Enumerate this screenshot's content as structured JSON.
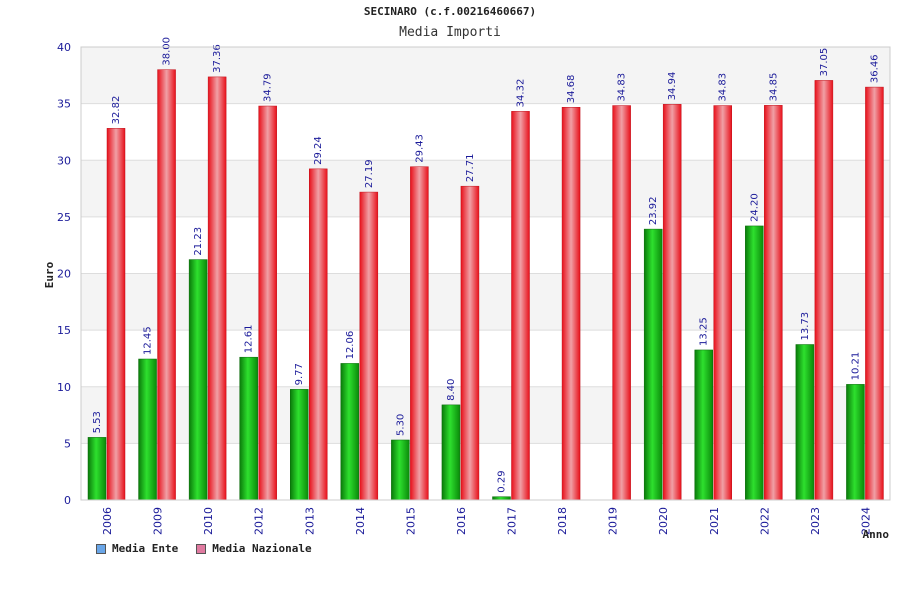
{
  "colors": {
    "ente_bar": "#14b814",
    "nazionale_bar": "#f0202a",
    "ente_legend": "#6aa6e8",
    "nazionale_legend": "#e07aa0",
    "tick_text": "#1a1a99"
  },
  "chart_data": {
    "type": "bar",
    "title": "SECINARO (c.f.00216460667)",
    "subtitle": "Media Importi",
    "xlabel": "Anno",
    "ylabel": "Euro",
    "ylim": [
      0,
      40
    ],
    "yticks": [
      0,
      5,
      10,
      15,
      20,
      25,
      30,
      35,
      40
    ],
    "grid": true,
    "legend_position": "bottom-left",
    "categories": [
      "2006",
      "2009",
      "2010",
      "2012",
      "2013",
      "2014",
      "2015",
      "2016",
      "2017",
      "2018",
      "2019",
      "2020",
      "2021",
      "2022",
      "2023",
      "2024"
    ],
    "series": [
      {
        "name": "Media Ente",
        "values": [
          5.53,
          12.45,
          21.23,
          12.61,
          9.77,
          12.06,
          5.3,
          8.4,
          0.29,
          null,
          null,
          23.92,
          13.25,
          24.2,
          13.73,
          10.21
        ],
        "labels": [
          "5.53",
          "12.45",
          "21.23",
          "12.61",
          "9.77",
          "12.06",
          "5.30",
          "8.40",
          "0.29",
          "",
          "",
          "23.92",
          "13.25",
          "24.20",
          "13.73",
          "10.21"
        ]
      },
      {
        "name": "Media Nazionale",
        "values": [
          32.82,
          38.0,
          37.36,
          34.79,
          29.24,
          27.19,
          29.43,
          27.71,
          34.32,
          34.68,
          34.83,
          34.94,
          34.83,
          34.85,
          37.05,
          36.46
        ],
        "labels": [
          "32.82",
          "38.00",
          "37.36",
          "34.79",
          "29.24",
          "27.19",
          "29.43",
          "27.71",
          "34.32",
          "34.68",
          "34.83",
          "34.94",
          "34.83",
          "34.85",
          "37.05",
          "36.46"
        ]
      }
    ]
  }
}
